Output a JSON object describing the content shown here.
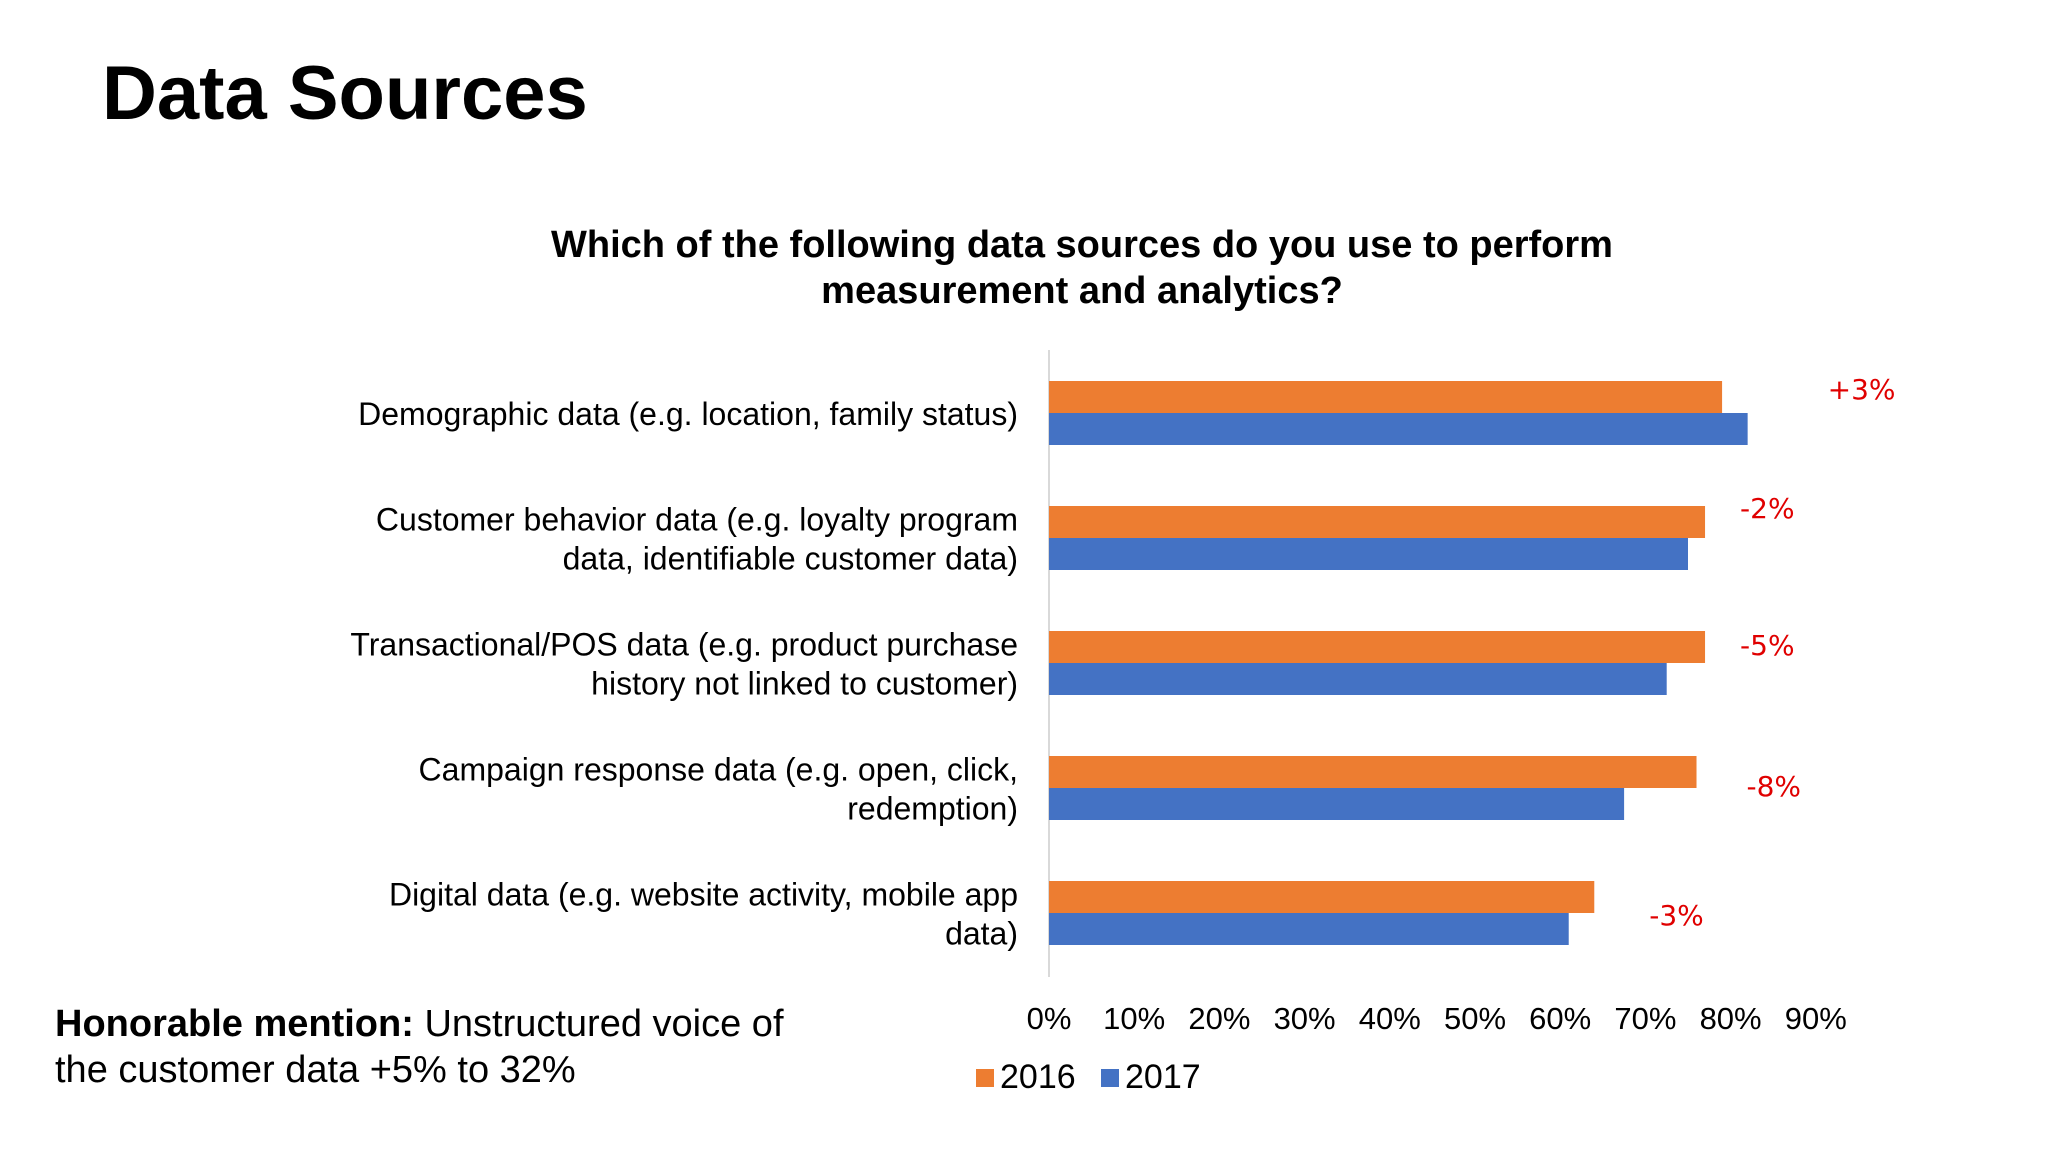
{
  "page": {
    "title": "Data Sources",
    "note_bold": "Honorable mention:",
    "note_line1_rest": " Unstructured voice of",
    "note_line2": "the customer data +5% to 32%"
  },
  "chart_data": {
    "type": "bar",
    "orientation": "horizontal",
    "title_lines": [
      "Which of the following data sources do you use to perform",
      "measurement and analytics?"
    ],
    "categories": [
      [
        "Demographic data (e.g. location, family status)"
      ],
      [
        "Customer behavior data (e.g.  loyalty program",
        "data, identifiable customer data)"
      ],
      [
        "Transactional/POS data (e.g. product purchase",
        "history not linked to customer)"
      ],
      [
        "Campaign response data (e.g. open, click,",
        "redemption)"
      ],
      [
        "Digital data (e.g. website activity, mobile app",
        "data)"
      ]
    ],
    "series": [
      {
        "name": "2016",
        "color": "#ED7D31",
        "values": [
          79,
          77,
          77,
          76,
          64
        ]
      },
      {
        "name": "2017",
        "color": "#4472C4",
        "values": [
          82,
          75,
          72.5,
          67.5,
          61
        ]
      }
    ],
    "annotations": [
      "+3%",
      "-2%",
      "-5%",
      "-8%",
      "-3%"
    ],
    "annotation_color": "#E00000",
    "xlim": [
      0,
      90
    ],
    "xticks": [
      "0%",
      "10%",
      "20%",
      "30%",
      "40%",
      "50%",
      "60%",
      "70%",
      "80%",
      "90%"
    ],
    "xtick_values": [
      0,
      10,
      20,
      30,
      40,
      50,
      60,
      70,
      80,
      90
    ],
    "legend_position": "bottom",
    "grid": false
  }
}
